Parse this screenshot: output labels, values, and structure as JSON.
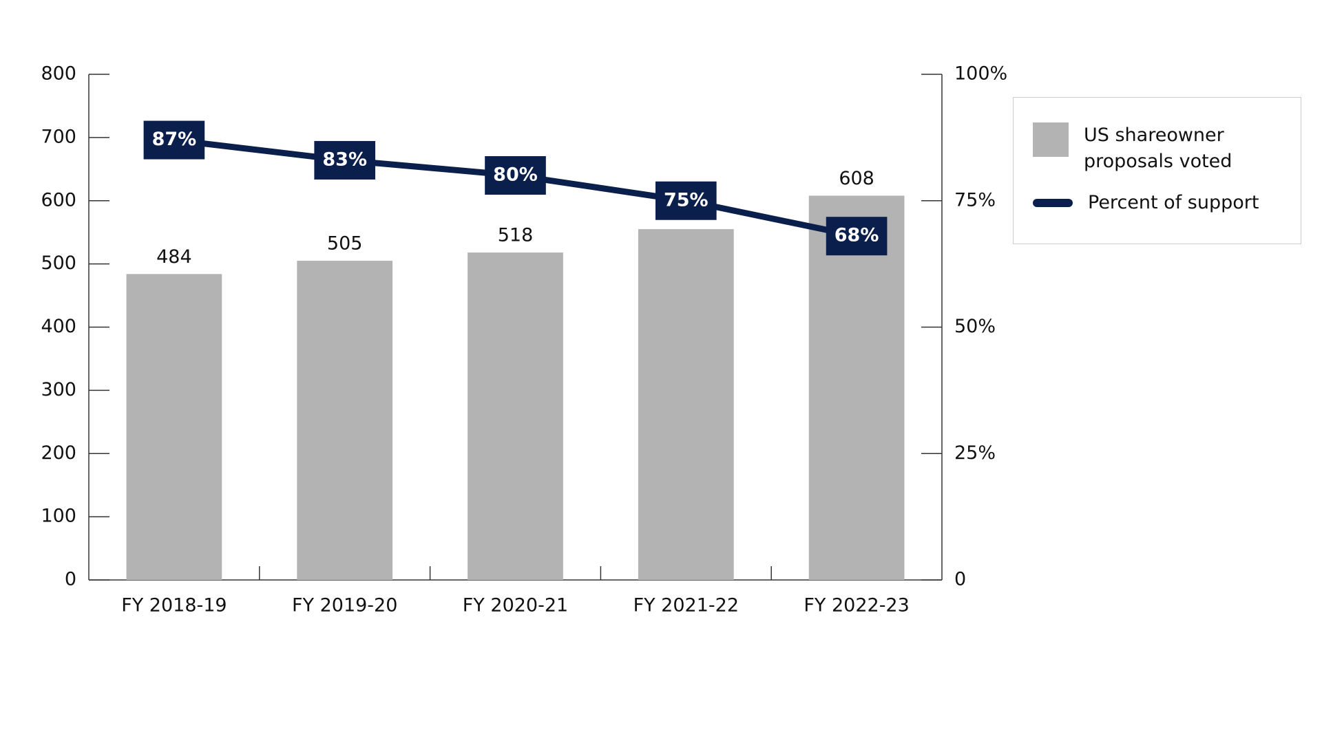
{
  "chart_data": {
    "type": "bar",
    "categories": [
      "FY 2018-19",
      "FY 2019-20",
      "FY 2020-21",
      "FY 2021-22",
      "FY 2022-23"
    ],
    "series": [
      {
        "name": "US shareowner proposals voted",
        "color": "#b3b3b3",
        "values": [
          484,
          505,
          518,
          555,
          608
        ]
      },
      {
        "name": "Percent of support",
        "color": "#0b1f4d",
        "type": "line",
        "axis": "y2",
        "values": [
          87,
          83,
          80,
          75,
          68
        ],
        "value_labels": [
          "87%",
          "83%",
          "80%",
          "75%",
          "68%"
        ]
      }
    ],
    "ylim": [
      0,
      800
    ],
    "yticks": [
      0,
      100,
      200,
      300,
      400,
      500,
      600,
      700,
      800
    ],
    "y2lim": [
      0,
      100
    ],
    "y2ticks": [
      0,
      {
        "value": 25,
        "label": "25%"
      },
      {
        "value": 50,
        "label": "50%"
      },
      {
        "value": 75,
        "label": "75%"
      },
      {
        "value": 100,
        "label": "100%"
      }
    ],
    "legend": "right"
  }
}
